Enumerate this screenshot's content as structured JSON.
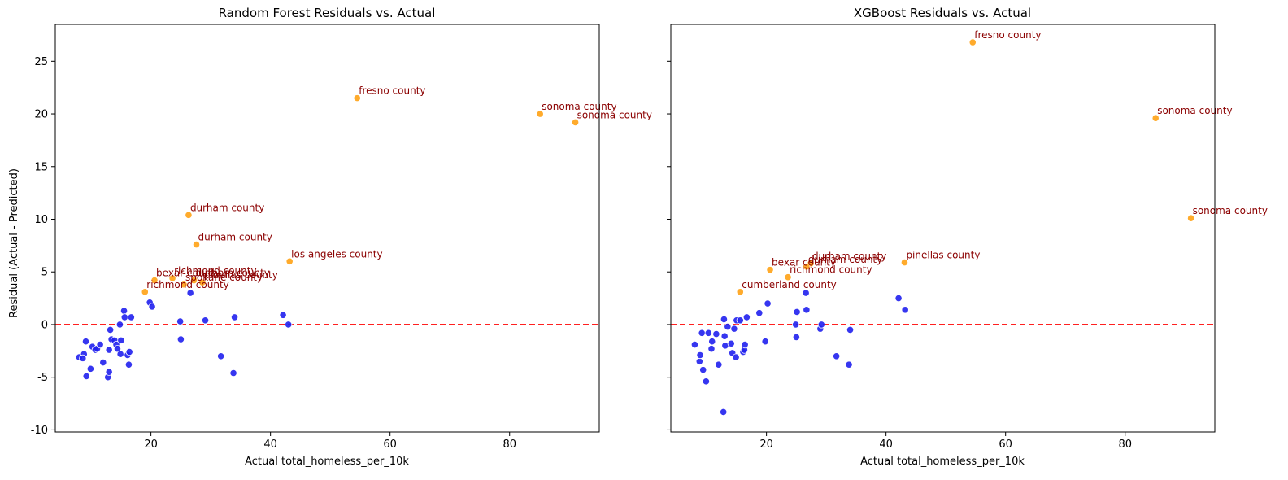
{
  "chart_data": [
    {
      "type": "scatter",
      "title": "Random Forest Residuals vs. Actual",
      "xlabel": "Actual total_homeless_per_10k",
      "ylabel": "Residual (Actual - Predicted)",
      "xlim": [
        4,
        95
      ],
      "ylim": [
        -10.2,
        28.5
      ],
      "xticks": [
        20,
        40,
        60,
        80
      ],
      "yticks": [
        -10,
        -5,
        0,
        5,
        10,
        15,
        20,
        25
      ],
      "reference_line_y": 0,
      "colors": {
        "normal": "#2020ee",
        "outlier": "#ffa621",
        "annotation": "#8b0000",
        "reference": "#ff0000"
      },
      "points": [
        [
          8,
          -3.1
        ],
        [
          8.8,
          -2.8
        ],
        [
          8.6,
          -3.2
        ],
        [
          9.1,
          -1.6
        ],
        [
          9.2,
          -4.9
        ],
        [
          9.9,
          -4.2
        ],
        [
          10.2,
          -2.1
        ],
        [
          10.7,
          -2.4
        ],
        [
          11,
          -2.3
        ],
        [
          11.5,
          -1.9
        ],
        [
          12,
          -3.6
        ],
        [
          12.8,
          -5
        ],
        [
          13,
          -4.5
        ],
        [
          13,
          -2.4
        ],
        [
          13.2,
          -0.5
        ],
        [
          13.4,
          -1.4
        ],
        [
          13.9,
          -1.5
        ],
        [
          14.2,
          -1.9
        ],
        [
          14.4,
          -2.3
        ],
        [
          14.8,
          0
        ],
        [
          14.9,
          -2.8
        ],
        [
          15,
          -1.5
        ],
        [
          15.5,
          1.3
        ],
        [
          15.6,
          0.7
        ],
        [
          16.1,
          -2.9
        ],
        [
          16.3,
          -3.8
        ],
        [
          16.4,
          -2.6
        ],
        [
          16.7,
          0.7
        ],
        [
          19.8,
          2.1
        ],
        [
          20.2,
          1.7
        ],
        [
          24.9,
          0.3
        ],
        [
          25,
          -1.4
        ],
        [
          26.6,
          3
        ],
        [
          29.1,
          0.4
        ],
        [
          31.7,
          -3
        ],
        [
          33.8,
          -4.6
        ],
        [
          34,
          0.7
        ],
        [
          42.1,
          0.9
        ],
        [
          43,
          0
        ]
      ],
      "outliers": [
        {
          "x": 54.5,
          "y": 21.5,
          "label": "fresno county"
        },
        {
          "x": 85.1,
          "y": 20,
          "label": "sonoma county"
        },
        {
          "x": 91,
          "y": 19.2,
          "label": "sonoma county"
        },
        {
          "x": 26.3,
          "y": 10.4,
          "label": "durham county"
        },
        {
          "x": 27.6,
          "y": 7.6,
          "label": "durham county"
        },
        {
          "x": 43.2,
          "y": 6,
          "label": "los angeles county"
        },
        {
          "x": 20.6,
          "y": 4.2,
          "label": "bexar county"
        },
        {
          "x": 23.6,
          "y": 4.4,
          "label": "richmond county"
        },
        {
          "x": 25.5,
          "y": 3.8,
          "label": "spokane county"
        },
        {
          "x": 27.2,
          "y": 4.2,
          "label": "durham county"
        },
        {
          "x": 28.6,
          "y": 4,
          "label": "pinellas county"
        },
        {
          "x": 19,
          "y": 3.1,
          "label": "richmond county"
        }
      ]
    },
    {
      "type": "scatter",
      "title": "XGBoost Residuals vs. Actual",
      "xlabel": "Actual total_homeless_per_10k",
      "ylabel": "",
      "xlim": [
        4,
        95
      ],
      "ylim": [
        -10.2,
        28.5
      ],
      "xticks": [
        20,
        40,
        60,
        80
      ],
      "yticks": [
        -10,
        -5,
        0,
        5,
        10,
        15,
        20,
        25
      ],
      "reference_line_y": 0,
      "colors": {
        "normal": "#2020ee",
        "outlier": "#ffa621",
        "annotation": "#8b0000",
        "reference": "#ff0000"
      },
      "points": [
        [
          8,
          -1.9
        ],
        [
          8.8,
          -3.5
        ],
        [
          8.9,
          -2.9
        ],
        [
          9.2,
          -0.8
        ],
        [
          9.4,
          -4.3
        ],
        [
          9.9,
          -5.4
        ],
        [
          10.3,
          -0.8
        ],
        [
          10.8,
          -2.3
        ],
        [
          10.9,
          -1.6
        ],
        [
          11.6,
          -0.9
        ],
        [
          12,
          -3.8
        ],
        [
          12.8,
          -8.3
        ],
        [
          12.9,
          0.5
        ],
        [
          13,
          -1.1
        ],
        [
          13.1,
          -2
        ],
        [
          13.5,
          -0.2
        ],
        [
          14.1,
          -1.8
        ],
        [
          14.3,
          -2.7
        ],
        [
          14.6,
          -0.4
        ],
        [
          14.9,
          -3.1
        ],
        [
          15,
          0.4
        ],
        [
          15.6,
          0.4
        ],
        [
          16.1,
          -2.6
        ],
        [
          16.3,
          -2.4
        ],
        [
          16.4,
          -1.9
        ],
        [
          16.7,
          0.7
        ],
        [
          18.8,
          1.1
        ],
        [
          19.8,
          -1.6
        ],
        [
          20.2,
          2
        ],
        [
          24.9,
          0
        ],
        [
          25,
          -1.2
        ],
        [
          25.1,
          1.2
        ],
        [
          26.6,
          3
        ],
        [
          26.7,
          1.4
        ],
        [
          29,
          -0.4
        ],
        [
          29.2,
          0
        ],
        [
          31.7,
          -3
        ],
        [
          33.8,
          -3.8
        ],
        [
          34,
          -0.5
        ],
        [
          42.1,
          2.5
        ],
        [
          43.2,
          1.4
        ]
      ],
      "outliers": [
        {
          "x": 54.5,
          "y": 26.8,
          "label": "fresno county"
        },
        {
          "x": 85.1,
          "y": 19.6,
          "label": "sonoma county"
        },
        {
          "x": 91,
          "y": 10.1,
          "label": "sonoma county"
        },
        {
          "x": 43.1,
          "y": 5.9,
          "label": "pinellas county"
        },
        {
          "x": 27.4,
          "y": 5.8,
          "label": "durham county"
        },
        {
          "x": 20.6,
          "y": 5.2,
          "label": "bexar county"
        },
        {
          "x": 26.7,
          "y": 5.5,
          "label": "durham county"
        },
        {
          "x": 23.6,
          "y": 4.5,
          "label": "richmond county"
        },
        {
          "x": 15.6,
          "y": 3.1,
          "label": "cumberland county"
        }
      ]
    }
  ]
}
